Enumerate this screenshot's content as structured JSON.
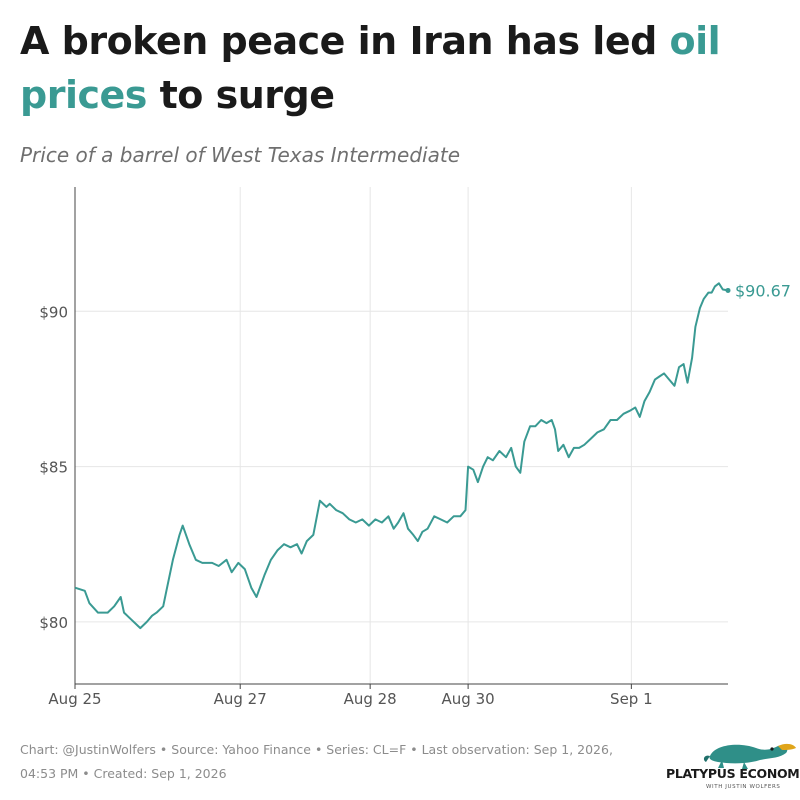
{
  "header": {
    "title_part1": "A broken peace in Iran has led ",
    "title_highlight": "oil prices",
    "title_part2": " to surge",
    "subtitle": "Price of a barrel of West Texas Intermediate"
  },
  "footer": {
    "line1": "Chart: @JustinWolfers • Source: Yahoo Finance • Series: CL=F • Last observation: Sep 1, 2026,",
    "line2": "04:53 PM • Created: Sep 1, 2026"
  },
  "logo": {
    "name": "PLATYPUS ECONOMICS",
    "tagline": "WITH JUSTIN WOLFERS",
    "icon": "platypus-icon"
  },
  "colors": {
    "accent": "#3a9a93",
    "title": "#1a1a1a",
    "muted": "#8c8c8c",
    "grid": "#e6e6e6"
  },
  "chart_data": {
    "type": "line",
    "title": "A broken peace in Iran has led oil prices to surge",
    "subtitle": "Price of a barrel of West Texas Intermediate",
    "ylim": [
      78,
      94
    ],
    "yticks": [
      80,
      85,
      90
    ],
    "ytick_labels": [
      "$80",
      "$85",
      "$90"
    ],
    "xticks": [
      {
        "label": "Aug 25",
        "t": 0.0
      },
      {
        "label": "Aug 27",
        "t": 0.253
      },
      {
        "label": "Aug 28",
        "t": 0.452
      },
      {
        "label": "Aug 30",
        "t": 0.602
      },
      {
        "label": "Sep 1",
        "t": 0.852
      }
    ],
    "grid": true,
    "end_label": "$90.67",
    "series": [
      {
        "color": "#3a9a93",
        "points": [
          [
            0.0,
            81.1
          ],
          [
            0.015,
            81.0
          ],
          [
            0.022,
            80.6
          ],
          [
            0.035,
            80.3
          ],
          [
            0.05,
            80.3
          ],
          [
            0.06,
            80.5
          ],
          [
            0.07,
            80.8
          ],
          [
            0.075,
            80.3
          ],
          [
            0.085,
            80.1
          ],
          [
            0.095,
            79.9
          ],
          [
            0.1,
            79.8
          ],
          [
            0.11,
            80.0
          ],
          [
            0.118,
            80.2
          ],
          [
            0.125,
            80.3
          ],
          [
            0.135,
            80.5
          ],
          [
            0.14,
            81.0
          ],
          [
            0.15,
            82.0
          ],
          [
            0.16,
            82.8
          ],
          [
            0.165,
            83.1
          ],
          [
            0.175,
            82.5
          ],
          [
            0.185,
            82.0
          ],
          [
            0.195,
            81.9
          ],
          [
            0.21,
            81.9
          ],
          [
            0.22,
            81.8
          ],
          [
            0.232,
            82.0
          ],
          [
            0.24,
            81.6
          ],
          [
            0.25,
            81.9
          ],
          [
            0.26,
            81.7
          ],
          [
            0.27,
            81.1
          ],
          [
            0.278,
            80.8
          ],
          [
            0.29,
            81.5
          ],
          [
            0.3,
            82.0
          ],
          [
            0.31,
            82.3
          ],
          [
            0.32,
            82.5
          ],
          [
            0.33,
            82.4
          ],
          [
            0.34,
            82.5
          ],
          [
            0.347,
            82.2
          ],
          [
            0.355,
            82.6
          ],
          [
            0.365,
            82.8
          ],
          [
            0.375,
            83.9
          ],
          [
            0.385,
            83.7
          ],
          [
            0.39,
            83.8
          ],
          [
            0.4,
            83.6
          ],
          [
            0.41,
            83.5
          ],
          [
            0.42,
            83.3
          ],
          [
            0.43,
            83.2
          ],
          [
            0.44,
            83.3
          ],
          [
            0.45,
            83.1
          ],
          [
            0.46,
            83.3
          ],
          [
            0.47,
            83.2
          ],
          [
            0.48,
            83.4
          ],
          [
            0.488,
            83.0
          ],
          [
            0.495,
            83.2
          ],
          [
            0.503,
            83.5
          ],
          [
            0.51,
            83.0
          ],
          [
            0.518,
            82.8
          ],
          [
            0.525,
            82.6
          ],
          [
            0.532,
            82.9
          ],
          [
            0.54,
            83.0
          ],
          [
            0.55,
            83.4
          ],
          [
            0.56,
            83.3
          ],
          [
            0.57,
            83.2
          ],
          [
            0.58,
            83.4
          ],
          [
            0.59,
            83.4
          ],
          [
            0.598,
            83.6
          ],
          [
            0.602,
            85.0
          ],
          [
            0.61,
            84.9
          ],
          [
            0.617,
            84.5
          ],
          [
            0.625,
            85.0
          ],
          [
            0.632,
            85.3
          ],
          [
            0.64,
            85.2
          ],
          [
            0.65,
            85.5
          ],
          [
            0.66,
            85.3
          ],
          [
            0.668,
            85.6
          ],
          [
            0.675,
            85.0
          ],
          [
            0.682,
            84.8
          ],
          [
            0.688,
            85.8
          ],
          [
            0.697,
            86.3
          ],
          [
            0.705,
            86.3
          ],
          [
            0.714,
            86.5
          ],
          [
            0.722,
            86.4
          ],
          [
            0.73,
            86.5
          ],
          [
            0.735,
            86.2
          ],
          [
            0.74,
            85.5
          ],
          [
            0.748,
            85.7
          ],
          [
            0.756,
            85.3
          ],
          [
            0.764,
            85.6
          ],
          [
            0.772,
            85.6
          ],
          [
            0.78,
            85.7
          ],
          [
            0.79,
            85.9
          ],
          [
            0.8,
            86.1
          ],
          [
            0.81,
            86.2
          ],
          [
            0.82,
            86.5
          ],
          [
            0.83,
            86.5
          ],
          [
            0.84,
            86.7
          ],
          [
            0.85,
            86.8
          ],
          [
            0.858,
            86.9
          ],
          [
            0.865,
            86.6
          ],
          [
            0.872,
            87.1
          ],
          [
            0.88,
            87.4
          ],
          [
            0.888,
            87.8
          ],
          [
            0.895,
            87.9
          ],
          [
            0.902,
            88.0
          ],
          [
            0.91,
            87.8
          ],
          [
            0.918,
            87.6
          ],
          [
            0.925,
            88.2
          ],
          [
            0.932,
            88.3
          ],
          [
            0.938,
            87.7
          ],
          [
            0.945,
            88.5
          ],
          [
            0.95,
            89.5
          ],
          [
            0.957,
            90.1
          ],
          [
            0.963,
            90.4
          ],
          [
            0.97,
            90.6
          ],
          [
            0.975,
            90.6
          ],
          [
            0.98,
            90.8
          ],
          [
            0.986,
            90.9
          ],
          [
            0.992,
            90.7
          ],
          [
            1.0,
            90.67
          ]
        ]
      }
    ]
  }
}
